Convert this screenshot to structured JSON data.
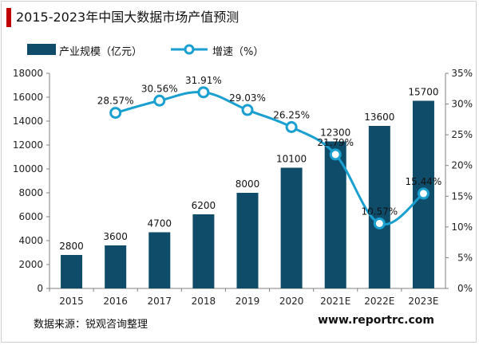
{
  "header": {
    "title": "2015-2023年中国大数据市场产值预测"
  },
  "legend": {
    "bar_label": "产业规模（亿元）",
    "line_label": "增速（%）"
  },
  "footer": {
    "source": "数据来源：锐观咨询整理",
    "website": "www.reportrc.com"
  },
  "colors": {
    "bar": "#0f4c6a",
    "line": "#1aa0d0",
    "marker_fill": "#ffffff",
    "title_accent": "#c00000"
  },
  "chart_data": {
    "type": "bar",
    "categories": [
      "2015",
      "2016",
      "2017",
      "2018",
      "2019",
      "2020",
      "2021E",
      "2022E",
      "2023E"
    ],
    "series": [
      {
        "name": "产业规模（亿元）",
        "type": "bar",
        "axis": "left",
        "values": [
          2800,
          3600,
          4700,
          6200,
          8000,
          10100,
          12300,
          13600,
          15700
        ],
        "labels": [
          "2800",
          "3600",
          "4700",
          "6200",
          "8000",
          "10100",
          "12300",
          "13600",
          "15700"
        ]
      },
      {
        "name": "增速（%）",
        "type": "line",
        "axis": "right",
        "values": [
          null,
          28.57,
          30.56,
          31.91,
          29.03,
          26.25,
          21.79,
          10.57,
          15.44
        ],
        "labels": [
          "",
          "28.57%",
          "30.56%",
          "31.91%",
          "29.03%",
          "26.25%",
          "21.79%",
          "10.57%",
          "15.44%"
        ]
      }
    ],
    "ylim_left": [
      0,
      18000
    ],
    "yticks_left": [
      "0",
      "2000",
      "4000",
      "6000",
      "8000",
      "10000",
      "12000",
      "14000",
      "16000",
      "18000"
    ],
    "ylim_right": [
      0,
      35
    ],
    "yticks_right": [
      "0%",
      "5%",
      "10%",
      "15%",
      "20%",
      "25%",
      "30%",
      "35%"
    ],
    "grid": false
  }
}
